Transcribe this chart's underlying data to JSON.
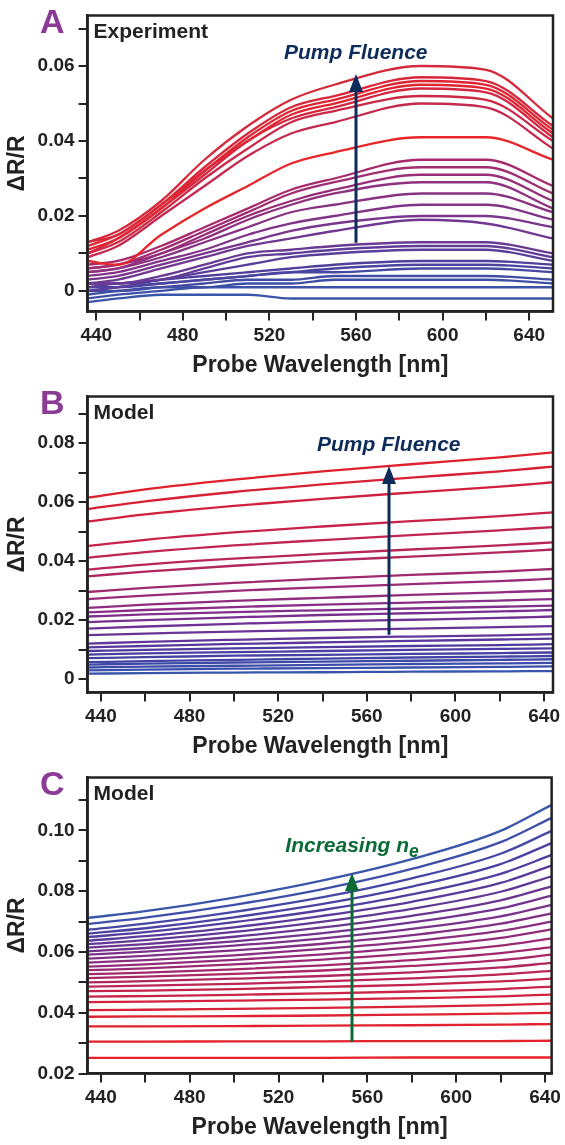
{
  "chart_data": [
    {
      "type": "line",
      "title": "A",
      "annotations": [
        "Experiment",
        {
          "text": "Pump Fluence",
          "x": 560,
          "y": 0.058
        }
      ],
      "xlabel": "Probe Wavelength [nm]",
      "ylabel": "ΔR/R",
      "marker": "none",
      "x": [
        436,
        450,
        470,
        490,
        510,
        530,
        550,
        590,
        620,
        651
      ],
      "xlim": [
        436,
        651
      ],
      "xticks": [
        440,
        {
          "value": 460,
          "label": null
        },
        480,
        {
          "value": 500,
          "label": null
        },
        520,
        {
          "value": 540,
          "label": null
        },
        560,
        {
          "value": 580,
          "label": null
        },
        600,
        {
          "value": 620,
          "label": null
        },
        640
      ],
      "ylim": [
        -0.0055,
        0.0735
      ],
      "yticks": [
        0,
        {
          "value": 0.01,
          "label": null
        },
        0.02,
        {
          "value": 0.03,
          "label": null
        },
        0.04,
        {
          "value": 0.05,
          "label": null
        },
        0.06,
        {
          "value": 0.07,
          "label": null
        }
      ],
      "series": [
        {
          "color": "#d42a3c",
          "values": [
            0.013,
            0.016,
            0.024,
            0.035,
            0.044,
            0.051,
            0.055,
            0.06,
            0.059,
            0.046
          ]
        },
        {
          "color": "#d8263a",
          "values": [
            0.013,
            0.015,
            0.023,
            0.033,
            0.042,
            0.049,
            0.052,
            0.057,
            0.056,
            0.044
          ]
        },
        {
          "color": "#de2434",
          "values": [
            0.012,
            0.015,
            0.023,
            0.032,
            0.041,
            0.048,
            0.051,
            0.056,
            0.055,
            0.043
          ]
        },
        {
          "color": "#e02430",
          "values": [
            0.011,
            0.014,
            0.022,
            0.032,
            0.04,
            0.047,
            0.05,
            0.055,
            0.054,
            0.042
          ]
        },
        {
          "color": "#d42640",
          "values": [
            0.01,
            0.014,
            0.022,
            0.031,
            0.04,
            0.046,
            0.049,
            0.054,
            0.053,
            0.041
          ]
        },
        {
          "color": "#cc2846",
          "values": [
            0.01,
            0.013,
            0.021,
            0.03,
            0.038,
            0.045,
            0.048,
            0.052,
            0.051,
            0.04
          ]
        },
        {
          "color": "#c42a50",
          "values": [
            0.009,
            0.012,
            0.02,
            0.028,
            0.036,
            0.042,
            0.045,
            0.05,
            0.049,
            0.038
          ]
        },
        {
          "color": "#e8262a",
          "values": [
            0.008,
            0.007,
            0.015,
            0.022,
            0.028,
            0.034,
            0.037,
            0.041,
            0.041,
            0.035
          ]
        },
        {
          "color": "#a82a6c",
          "values": [
            0.007,
            0.008,
            0.012,
            0.017,
            0.022,
            0.027,
            0.03,
            0.035,
            0.035,
            0.028
          ]
        },
        {
          "color": "#a02c72",
          "values": [
            0.006,
            0.007,
            0.011,
            0.016,
            0.021,
            0.026,
            0.029,
            0.033,
            0.033,
            0.026
          ]
        },
        {
          "color": "#982e78",
          "values": [
            0.006,
            0.007,
            0.01,
            0.015,
            0.02,
            0.024,
            0.027,
            0.031,
            0.031,
            0.024
          ]
        },
        {
          "color": "#90307e",
          "values": [
            0.005,
            0.006,
            0.01,
            0.014,
            0.019,
            0.023,
            0.026,
            0.029,
            0.029,
            0.022
          ]
        },
        {
          "color": "#883282",
          "values": [
            0.005,
            0.006,
            0.009,
            0.013,
            0.017,
            0.021,
            0.023,
            0.026,
            0.026,
            0.021
          ]
        },
        {
          "color": "#803488",
          "values": [
            0.004,
            0.005,
            0.008,
            0.011,
            0.015,
            0.018,
            0.02,
            0.023,
            0.023,
            0.019
          ]
        },
        {
          "color": "#78368c",
          "values": [
            0.003,
            0.004,
            0.007,
            0.01,
            0.013,
            0.016,
            0.018,
            0.02,
            0.02,
            0.017
          ]
        },
        {
          "color": "#703890",
          "values": [
            0.002,
            0.003,
            0.006,
            0.009,
            0.012,
            0.014,
            0.016,
            0.019,
            0.018,
            0.014
          ]
        },
        {
          "color": "#683a94",
          "values": [
            0.002,
            0.002,
            0.004,
            0.007,
            0.01,
            0.011,
            0.012,
            0.013,
            0.013,
            0.01
          ]
        },
        {
          "color": "#603c98",
          "values": [
            0.001,
            0.002,
            0.003,
            0.006,
            0.009,
            0.01,
            0.011,
            0.012,
            0.012,
            0.009
          ]
        },
        {
          "color": "#583e9a",
          "values": [
            0.0,
            0.001,
            0.003,
            0.005,
            0.007,
            0.009,
            0.01,
            0.011,
            0.011,
            0.008
          ]
        },
        {
          "color": "#50409c",
          "values": [
            0.002,
            0.002,
            0.003,
            0.004,
            0.005,
            0.006,
            0.007,
            0.008,
            0.008,
            0.007
          ]
        },
        {
          "color": "#4a44a0",
          "values": [
            0.001,
            0.001,
            0.002,
            0.003,
            0.004,
            0.005,
            0.006,
            0.007,
            0.007,
            0.006
          ]
        },
        {
          "color": "#4648a2",
          "values": [
            0.0,
            0.001,
            0.002,
            0.003,
            0.004,
            0.005,
            0.005,
            0.006,
            0.006,
            0.005
          ]
        },
        {
          "color": "#424ca4",
          "values": [
            0.0,
            0.0,
            0.001,
            0.002,
            0.003,
            0.003,
            0.004,
            0.004,
            0.004,
            0.003
          ]
        },
        {
          "color": "#3e50a6",
          "values": [
            -0.001,
            0.0,
            0.001,
            0.001,
            0.002,
            0.002,
            0.003,
            0.003,
            0.003,
            0.002
          ]
        },
        {
          "color": "#3c52a8",
          "values": [
            -0.002,
            -0.001,
            0.0,
            0.001,
            0.001,
            0.001,
            0.001,
            0.001,
            0.001,
            0.001
          ]
        },
        {
          "color": "#3a56aa",
          "values": [
            -0.003,
            -0.002,
            -0.001,
            -0.001,
            -0.001,
            -0.002,
            -0.002,
            -0.002,
            -0.002,
            -0.002
          ]
        }
      ]
    },
    {
      "type": "line",
      "title": "B",
      "annotations": [
        "Model",
        {
          "text": "Pump Fluence",
          "x": 570,
          "y": 0.0722
        }
      ],
      "xlabel": "Probe Wavelength [nm]",
      "ylabel": "ΔR/R",
      "marker": "none",
      "x": [
        434,
        460,
        500,
        540,
        580,
        620,
        644
      ],
      "xlim": [
        434,
        644
      ],
      "xticks": [
        440,
        {
          "value": 460,
          "label": null
        },
        480,
        {
          "value": 500,
          "label": null
        },
        520,
        {
          "value": 540,
          "label": null
        },
        560,
        {
          "value": 580,
          "label": null
        },
        600,
        {
          "value": 620,
          "label": null
        },
        640
      ],
      "ylim": [
        -0.0046,
        0.0958
      ],
      "yticks": [
        0,
        {
          "value": 0.01,
          "label": null
        },
        0.02,
        {
          "value": 0.03,
          "label": null
        },
        0.04,
        {
          "value": 0.05,
          "label": null
        },
        0.06,
        {
          "value": 0.07,
          "label": null
        },
        0.08,
        {
          "value": 0.09,
          "label": null
        }
      ],
      "series": [
        {
          "color": "#e0202c",
          "values": [
            0.0615,
            0.0643,
            0.0676,
            0.0704,
            0.0728,
            0.0751,
            0.0768
          ]
        },
        {
          "color": "#d82035",
          "values": [
            0.0576,
            0.0602,
            0.0634,
            0.066,
            0.0683,
            0.0704,
            0.072
          ]
        },
        {
          "color": "#d0203e",
          "values": [
            0.0534,
            0.0558,
            0.0587,
            0.0611,
            0.0632,
            0.0652,
            0.0667
          ]
        },
        {
          "color": "#c8224a",
          "values": [
            0.0451,
            0.0472,
            0.0497,
            0.0517,
            0.0535,
            0.0552,
            0.0565
          ]
        },
        {
          "color": "#c02450",
          "values": [
            0.0411,
            0.043,
            0.0453,
            0.0471,
            0.0488,
            0.0504,
            0.0515
          ]
        },
        {
          "color": "#b82658",
          "values": [
            0.0371,
            0.0388,
            0.0408,
            0.0424,
            0.0439,
            0.0453,
            0.0463
          ]
        },
        {
          "color": "#b0285e",
          "values": [
            0.0348,
            0.0364,
            0.0384,
            0.0401,
            0.0415,
            0.0429,
            0.0439
          ]
        },
        {
          "color": "#a02a70",
          "values": [
            0.0295,
            0.0309,
            0.0326,
            0.034,
            0.0353,
            0.0364,
            0.0373
          ]
        },
        {
          "color": "#982c78",
          "values": [
            0.0271,
            0.0283,
            0.0299,
            0.0311,
            0.0322,
            0.0332,
            0.034
          ]
        },
        {
          "color": "#902c80",
          "values": [
            0.0241,
            0.0252,
            0.0265,
            0.0275,
            0.0285,
            0.0294,
            0.03
          ]
        },
        {
          "color": "#882e86",
          "values": [
            0.0226,
            0.0234,
            0.0244,
            0.0252,
            0.0259,
            0.0266,
            0.0271
          ]
        },
        {
          "color": "#80308a",
          "values": [
            0.0212,
            0.0219,
            0.0227,
            0.0233,
            0.0239,
            0.0245,
            0.0249
          ]
        },
        {
          "color": "#78308e",
          "values": [
            0.0193,
            0.02,
            0.0209,
            0.0217,
            0.0223,
            0.0229,
            0.0234
          ]
        },
        {
          "color": "#703292",
          "values": [
            0.0171,
            0.0178,
            0.0187,
            0.0195,
            0.0201,
            0.0207,
            0.0212
          ]
        },
        {
          "color": "#683496",
          "values": [
            0.0149,
            0.0154,
            0.0161,
            0.0166,
            0.0171,
            0.0176,
            0.0179
          ]
        },
        {
          "color": "#60369a",
          "values": [
            0.012,
            0.0126,
            0.0133,
            0.0139,
            0.0144,
            0.0148,
            0.0152
          ]
        },
        {
          "color": "#58389c",
          "values": [
            0.0107,
            0.0112,
            0.0119,
            0.0124,
            0.0129,
            0.0134,
            0.0137
          ]
        },
        {
          "color": "#503a9e",
          "values": [
            0.0095,
            0.0099,
            0.0104,
            0.0108,
            0.0112,
            0.0115,
            0.0118
          ]
        },
        {
          "color": "#4a3ea0",
          "values": [
            0.0083,
            0.0087,
            0.0091,
            0.0095,
            0.0099,
            0.0102,
            0.0104
          ]
        },
        {
          "color": "#4642a2",
          "values": [
            0.0071,
            0.0074,
            0.0079,
            0.0082,
            0.0085,
            0.0088,
            0.009
          ]
        },
        {
          "color": "#4244a4",
          "values": [
            0.0057,
            0.0061,
            0.0065,
            0.0069,
            0.0073,
            0.0076,
            0.0078
          ]
        },
        {
          "color": "#3e48a6",
          "values": [
            0.0049,
            0.0052,
            0.0056,
            0.0059,
            0.0062,
            0.0065,
            0.0067
          ]
        },
        {
          "color": "#3c4ca8",
          "values": [
            0.0039,
            0.0042,
            0.0045,
            0.0048,
            0.0051,
            0.0053,
            0.0055
          ]
        },
        {
          "color": "#3a50aa",
          "values": [
            0.0029,
            0.0032,
            0.0035,
            0.0037,
            0.0039,
            0.0041,
            0.0043
          ]
        },
        {
          "color": "#3854ac",
          "values": [
            0.0018,
            0.002,
            0.0022,
            0.0023,
            0.0025,
            0.0026,
            0.0027
          ]
        }
      ]
    },
    {
      "type": "line",
      "title": "C",
      "annotations": [
        "Model",
        {
          "text": "Increasing n$_{e}$",
          "x": 553,
          "y": 0.0858
        }
      ],
      "xlabel": "Probe Wavelength [nm]",
      "ylabel": "ΔR/R",
      "marker": "none",
      "x": [
        434,
        460,
        500,
        540,
        580,
        620,
        643
      ],
      "xlim": [
        434,
        643
      ],
      "xticks": [
        440,
        {
          "value": 460,
          "label": null
        },
        480,
        {
          "value": 500,
          "label": null
        },
        520,
        {
          "value": 540,
          "label": null
        },
        560,
        {
          "value": 580,
          "label": null
        },
        600,
        {
          "value": 620,
          "label": null
        },
        640
      ],
      "ylim": [
        0.02,
        0.1174
      ],
      "yticks": [
        0.02,
        {
          "value": 0.03,
          "label": null
        },
        0.04,
        {
          "value": 0.05,
          "label": null
        },
        0.06,
        {
          "value": 0.07,
          "label": null
        },
        0.08,
        {
          "value": 0.09,
          "label": null
        },
        {
          "value": 0.1,
          "label": "0.10"
        },
        {
          "value": 0.11,
          "label": null
        }
      ],
      "series": [
        {
          "color": "#3a56aa",
          "values": [
            0.0712,
            0.0734,
            0.0779,
            0.0835,
            0.0905,
            0.0998,
            0.1084
          ]
        },
        {
          "color": "#3e50a8",
          "values": [
            0.0692,
            0.0713,
            0.0755,
            0.0807,
            0.0873,
            0.0961,
            0.1041
          ]
        },
        {
          "color": "#4448a4",
          "values": [
            0.0673,
            0.0693,
            0.0732,
            0.078,
            0.0842,
            0.0923,
            0.0998
          ]
        },
        {
          "color": "#4a42a2",
          "values": [
            0.066,
            0.0678,
            0.0714,
            0.0758,
            0.0815,
            0.0889,
            0.0958
          ]
        },
        {
          "color": "#523e9e",
          "values": [
            0.0649,
            0.0665,
            0.0698,
            0.0738,
            0.0789,
            0.0857,
            0.0919
          ]
        },
        {
          "color": "#5a3a9a",
          "values": [
            0.0637,
            0.0652,
            0.0681,
            0.0719,
            0.0765,
            0.0827,
            0.0884
          ]
        },
        {
          "color": "#623896",
          "values": [
            0.0626,
            0.0639,
            0.0666,
            0.07,
            0.0742,
            0.0798,
            0.0849
          ]
        },
        {
          "color": "#6a3692",
          "values": [
            0.0614,
            0.0626,
            0.065,
            0.0681,
            0.0719,
            0.077,
            0.0816
          ]
        },
        {
          "color": "#72348e",
          "values": [
            0.0602,
            0.0613,
            0.0635,
            0.0662,
            0.0697,
            0.0743,
            0.0785
          ]
        },
        {
          "color": "#7a328a",
          "values": [
            0.0591,
            0.0601,
            0.0621,
            0.0645,
            0.0676,
            0.0717,
            0.0755
          ]
        },
        {
          "color": "#823086",
          "values": [
            0.0578,
            0.0587,
            0.0605,
            0.0627,
            0.0655,
            0.0693,
            0.0727
          ]
        },
        {
          "color": "#8a2e80",
          "values": [
            0.0565,
            0.0573,
            0.0589,
            0.061,
            0.0635,
            0.0669,
            0.07
          ]
        },
        {
          "color": "#922c7a",
          "values": [
            0.0552,
            0.0559,
            0.0574,
            0.0592,
            0.0615,
            0.0646,
            0.0674
          ]
        },
        {
          "color": "#9a2a74",
          "values": [
            0.054,
            0.0546,
            0.0559,
            0.0575,
            0.0595,
            0.0621,
            0.0645
          ]
        },
        {
          "color": "#a2286c",
          "values": [
            0.0527,
            0.0532,
            0.0543,
            0.0556,
            0.0573,
            0.0596,
            0.0616
          ]
        },
        {
          "color": "#aa2866",
          "values": [
            0.0514,
            0.0519,
            0.0528,
            0.0539,
            0.0554,
            0.0573,
            0.0591
          ]
        },
        {
          "color": "#b2265e",
          "values": [
            0.05,
            0.0504,
            0.0512,
            0.0521,
            0.0533,
            0.0549,
            0.0564
          ]
        },
        {
          "color": "#ba2656",
          "values": [
            0.0486,
            0.0489,
            0.0495,
            0.0503,
            0.0513,
            0.0526,
            0.0538
          ]
        },
        {
          "color": "#c2244e",
          "values": [
            0.0471,
            0.0473,
            0.0478,
            0.0485,
            0.0492,
            0.0503,
            0.0512
          ]
        },
        {
          "color": "#ca2446",
          "values": [
            0.0453,
            0.0455,
            0.0459,
            0.0464,
            0.047,
            0.0478,
            0.0486
          ]
        },
        {
          "color": "#d2223e",
          "values": [
            0.0435,
            0.0437,
            0.044,
            0.0443,
            0.0448,
            0.0454,
            0.046
          ]
        },
        {
          "color": "#d82238",
          "values": [
            0.0409,
            0.041,
            0.0413,
            0.0416,
            0.042,
            0.0425,
            0.043
          ]
        },
        {
          "color": "#de2232",
          "values": [
            0.0387,
            0.0388,
            0.0389,
            0.0391,
            0.0394,
            0.0397,
            0.04
          ]
        },
        {
          "color": "#e2222e",
          "values": [
            0.0355,
            0.0355,
            0.0356,
            0.0358,
            0.0359,
            0.0361,
            0.0363
          ]
        },
        {
          "color": "#e4222a",
          "values": [
            0.0305,
            0.0305,
            0.0306,
            0.0306,
            0.0307,
            0.0307,
            0.0308
          ]
        },
        {
          "color": "#e62228",
          "values": [
            0.0252,
            0.0252,
            0.0252,
            0.0252,
            0.0253,
            0.0253,
            0.0253
          ]
        }
      ]
    }
  ]
}
